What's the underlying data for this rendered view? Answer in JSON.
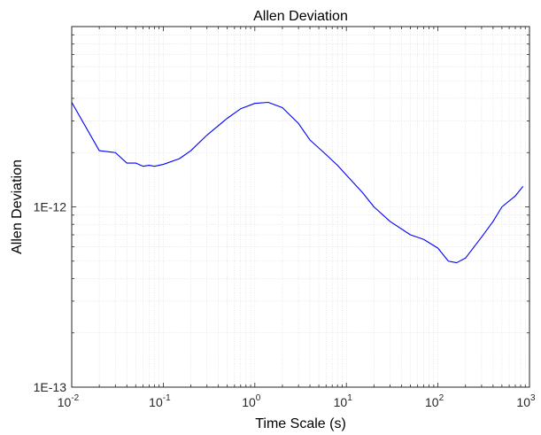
{
  "chart_data": {
    "type": "line",
    "title": "Allen Deviation",
    "xlabel": "Time Scale (s)",
    "ylabel": "Allen Deviation",
    "xscale": "log",
    "yscale": "log",
    "xlim": [
      0.01,
      1000
    ],
    "ylim": [
      1e-13,
      1e-11
    ],
    "grid": true,
    "x_ticks": [
      {
        "value": 0.01,
        "base": "10",
        "exp": "-2"
      },
      {
        "value": 0.1,
        "base": "10",
        "exp": "-1"
      },
      {
        "value": 1,
        "base": "10",
        "exp": "0"
      },
      {
        "value": 10,
        "base": "10",
        "exp": "1"
      },
      {
        "value": 100,
        "base": "10",
        "exp": "2"
      },
      {
        "value": 1000,
        "base": "10",
        "exp": "3"
      }
    ],
    "y_ticks": [
      {
        "value": 1e-13,
        "label": "1E-13"
      },
      {
        "value": 1e-12,
        "label": "1E-12"
      }
    ],
    "series": [
      {
        "color": "#0000ff",
        "x": [
          0.01,
          0.02,
          0.03,
          0.04,
          0.05,
          0.06,
          0.07,
          0.08,
          0.1,
          0.15,
          0.2,
          0.3,
          0.5,
          0.7,
          1.0,
          1.4,
          2.0,
          3.0,
          4.0,
          6.0,
          8.0,
          10,
          15,
          20,
          30,
          50,
          70,
          100,
          130,
          160,
          200,
          300,
          400,
          500,
          700,
          850
        ],
        "y": [
          3.8e-12,
          2.05e-12,
          2e-12,
          1.75e-12,
          1.75e-12,
          1.68e-12,
          1.7e-12,
          1.68e-12,
          1.72e-12,
          1.85e-12,
          2.05e-12,
          2.5e-12,
          3.1e-12,
          3.5e-12,
          3.75e-12,
          3.8e-12,
          3.55e-12,
          2.9e-12,
          2.35e-12,
          1.95e-12,
          1.7e-12,
          1.5e-12,
          1.2e-12,
          1e-12,
          8.3e-13,
          7e-13,
          6.6e-13,
          5.9e-13,
          5e-13,
          4.9e-13,
          5.2e-13,
          6.8e-13,
          8.3e-13,
          1e-12,
          1.15e-12,
          1.3e-12
        ]
      }
    ]
  }
}
